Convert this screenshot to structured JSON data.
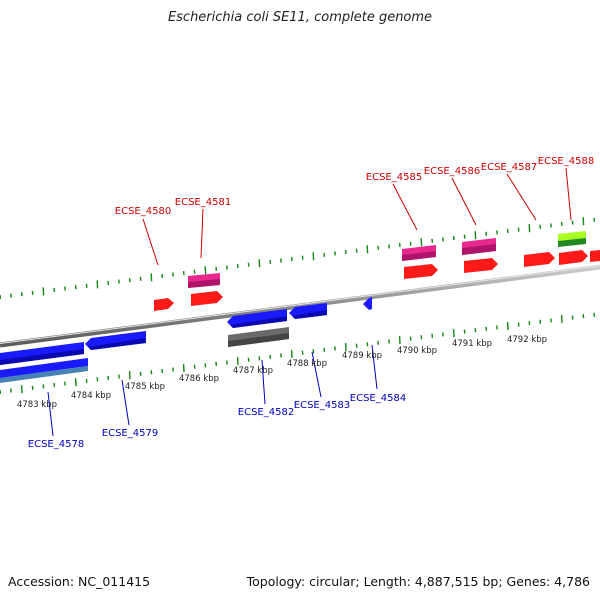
{
  "title": "Escherichia coli SE11, complete genome",
  "footer": {
    "accession": "Accession: NC_011415",
    "summary": "Topology: circular; Length: 4,887,515 bp; Genes: 4,786"
  },
  "colors": {
    "forward_cds": "#ff1a1a",
    "forward_gene": "#e8288c",
    "reverse_cds": "#1a1aff",
    "reverse_gene": "#666666",
    "rna_light": "#aaff22",
    "rna_dark": "#228822",
    "ticks": "#118811",
    "forward_label": "#cc0000",
    "reverse_label": "#0000bb"
  },
  "scale_labels": [
    "4783 kbp",
    "4784 kbp",
    "4785 kbp",
    "4786 kbp",
    "4787 kbp",
    "4788 kbp",
    "4789 kbp",
    "4790 kbp",
    "4791 kbp",
    "4792 kbp"
  ],
  "forward_labels": [
    "ECSE_4580",
    "ECSE_4581",
    "ECSE_4585",
    "ECSE_4586",
    "ECSE_4587",
    "ECSE_4588"
  ],
  "reverse_labels": [
    "ECSE_4578",
    "ECSE_4579",
    "ECSE_4582",
    "ECSE_4583",
    "ECSE_4584"
  ]
}
